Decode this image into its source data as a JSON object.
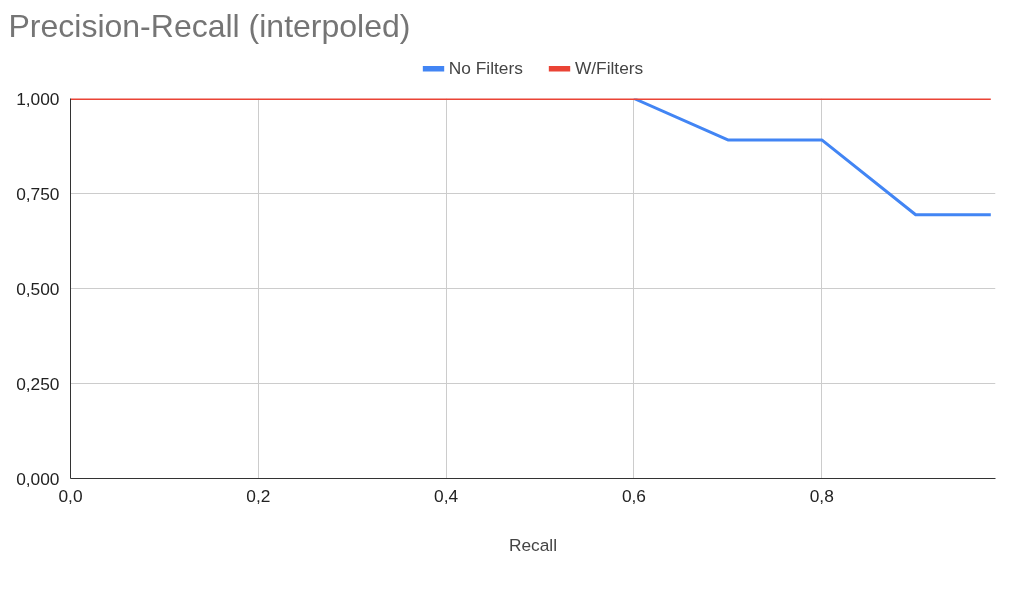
{
  "chart_data": {
    "type": "line",
    "title": "Precision-Recall (interpoled)",
    "xlabel": "Recall",
    "x": [
      0,
      0.1,
      0.2,
      0.3,
      0.4,
      0.5,
      0.6,
      0.7,
      0.8,
      0.9,
      0.98
    ],
    "series": [
      {
        "name": "No Filters",
        "color": "#4285f4",
        "values": [
          null,
          null,
          null,
          null,
          null,
          null,
          1,
          0.891,
          0.891,
          0.694,
          0.694
        ]
      },
      {
        "name": "W/Filters",
        "color": "#ea4335",
        "values": [
          1,
          1,
          1,
          1,
          1,
          1,
          1,
          1,
          1,
          1,
          1
        ]
      }
    ],
    "xlim": [
      0,
      0.985
    ],
    "ylim": [
      0,
      1
    ],
    "xticks": [
      {
        "value": 0,
        "label": "0,0"
      },
      {
        "value": 0.2,
        "label": "0,2"
      },
      {
        "value": 0.4,
        "label": "0,4"
      },
      {
        "value": 0.6,
        "label": "0,6"
      },
      {
        "value": 0.8,
        "label": "0,8"
      }
    ],
    "yticks": [
      {
        "value": 0,
        "label": "0,000"
      },
      {
        "value": 0.25,
        "label": "0,250"
      },
      {
        "value": 0.5,
        "label": "0,500"
      },
      {
        "value": 0.75,
        "label": "0,750"
      },
      {
        "value": 1,
        "label": "1,000"
      }
    ],
    "grid": true,
    "legend": "top",
    "marker": "none",
    "line_style": "solid"
  }
}
